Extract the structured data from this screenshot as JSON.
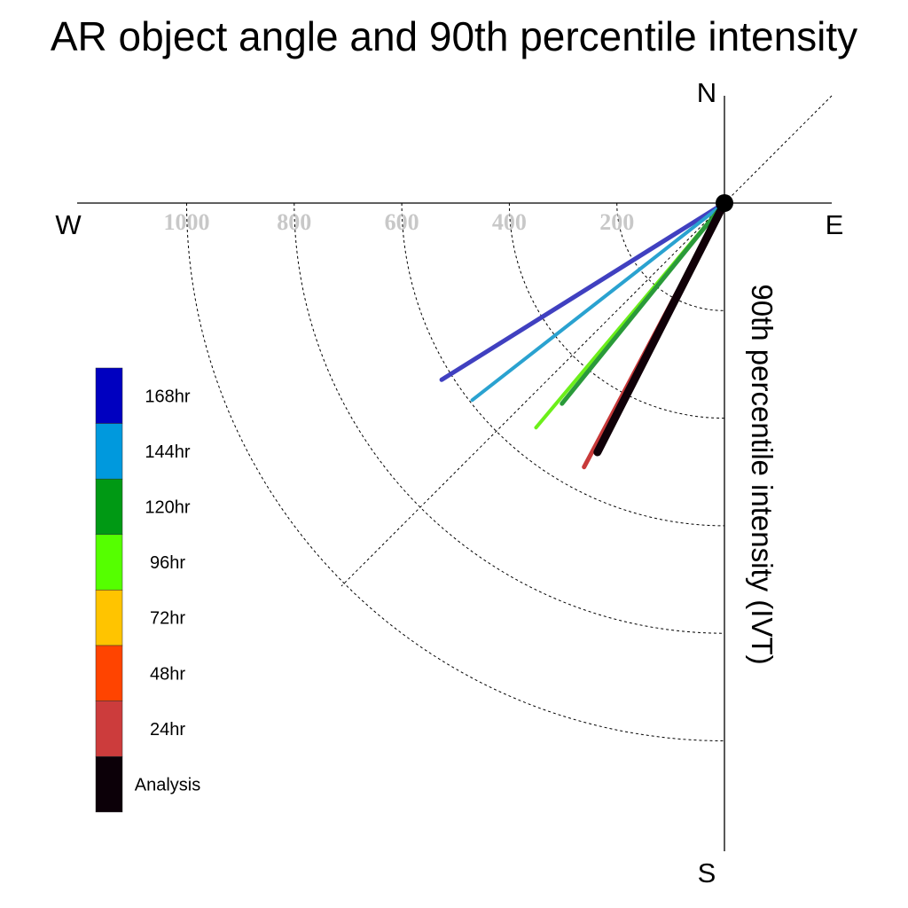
{
  "chart_data": {
    "type": "polar-vector",
    "title": "AR object angle and 90th percentile intensity",
    "compass": {
      "N": "N",
      "S": "S",
      "E": "E",
      "W": "W"
    },
    "ylabel": "90th percentile intensity (IVT)",
    "ring_values": [
      200,
      400,
      600,
      800,
      1000
    ],
    "r_range": [
      0,
      1000
    ],
    "series": [
      {
        "name": "168hr",
        "color": "#4040c0",
        "width": 5,
        "angle_deg": 238,
        "intensity": 620
      },
      {
        "name": "144hr",
        "color": "#2aa2d0",
        "width": 4,
        "angle_deg": 232,
        "intensity": 595
      },
      {
        "name": "96hr",
        "color": "#6cef1a",
        "width": 4,
        "angle_deg": 220,
        "intensity": 545
      },
      {
        "name": "120hr",
        "color": "#2a9a3a",
        "width": 5,
        "angle_deg": 219,
        "intensity": 480
      },
      {
        "name": "24hr",
        "color": "#c83a3a",
        "width": 5,
        "angle_deg": 208,
        "intensity": 556
      },
      {
        "name": "Analysis",
        "color": "#100008",
        "width": 9,
        "angle_deg": 207,
        "intensity": 520
      }
    ],
    "legend": [
      {
        "label": "168hr",
        "color": "#0000c0"
      },
      {
        "label": "144hr",
        "color": "#0099dd"
      },
      {
        "label": "120hr",
        "color": "#009914"
      },
      {
        "label": "96hr",
        "color": "#55ff00"
      },
      {
        "label": "72hr",
        "color": "#ffc400"
      },
      {
        "label": "48hr",
        "color": "#ff4400"
      },
      {
        "label": "24hr",
        "color": "#cc3c3c"
      },
      {
        "label": "Analysis",
        "color": "#0c0008"
      }
    ]
  }
}
